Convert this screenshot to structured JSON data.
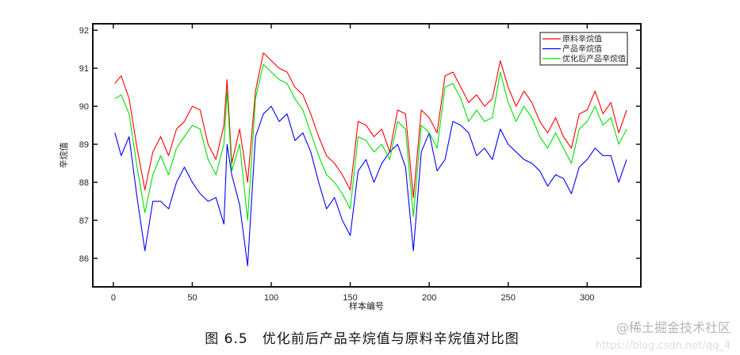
{
  "chart_data": {
    "type": "line",
    "title": "",
    "xlabel": "样本编号",
    "ylabel": "辛烷值",
    "xlim": [
      -13,
      334
    ],
    "ylim": [
      85.25,
      92.17
    ],
    "xticks": [
      0,
      50,
      100,
      150,
      200,
      250,
      300
    ],
    "yticks": [
      86,
      87,
      88,
      89,
      90,
      91,
      92
    ],
    "grid": false,
    "legend_position": "top-right",
    "x": [
      1,
      5,
      10,
      15,
      20,
      25,
      30,
      35,
      40,
      45,
      50,
      55,
      60,
      65,
      70,
      72,
      75,
      80,
      85,
      90,
      95,
      100,
      105,
      110,
      115,
      120,
      125,
      130,
      135,
      140,
      145,
      150,
      155,
      160,
      165,
      170,
      175,
      180,
      185,
      190,
      195,
      200,
      205,
      210,
      215,
      220,
      225,
      230,
      235,
      240,
      245,
      250,
      255,
      260,
      265,
      270,
      275,
      280,
      285,
      290,
      295,
      300,
      305,
      310,
      315,
      320,
      325
    ],
    "series": [
      {
        "name": "原料辛烷值",
        "color": "#ff0000",
        "values": [
          90.6,
          90.8,
          90.2,
          88.9,
          87.8,
          88.8,
          89.2,
          88.7,
          89.4,
          89.6,
          90.0,
          89.9,
          89.0,
          88.6,
          89.5,
          90.7,
          88.5,
          89.4,
          88.0,
          90.4,
          91.4,
          91.2,
          91.0,
          90.9,
          90.5,
          90.3,
          89.8,
          89.2,
          88.7,
          88.5,
          88.2,
          87.8,
          89.6,
          89.5,
          89.2,
          89.4,
          88.8,
          89.9,
          89.8,
          87.6,
          89.9,
          89.7,
          89.3,
          90.8,
          90.9,
          90.5,
          90.1,
          90.3,
          90.0,
          90.2,
          91.2,
          90.5,
          90.0,
          90.4,
          90.1,
          89.6,
          89.3,
          89.7,
          89.2,
          88.9,
          89.8,
          89.9,
          90.4,
          89.8,
          90.1,
          89.3,
          89.9
        ]
      },
      {
        "name": "产品辛烷值",
        "color": "#0000ff",
        "values": [
          89.3,
          88.7,
          89.2,
          87.6,
          86.2,
          87.5,
          87.5,
          87.3,
          88.0,
          88.4,
          88.0,
          87.7,
          87.5,
          87.6,
          86.9,
          89.0,
          88.2,
          87.4,
          85.8,
          89.2,
          89.8,
          90.0,
          89.6,
          89.8,
          89.1,
          89.3,
          88.8,
          88.0,
          87.3,
          87.6,
          87.0,
          86.6,
          88.3,
          88.6,
          88.0,
          88.5,
          88.8,
          89.0,
          88.4,
          86.2,
          88.8,
          89.3,
          88.3,
          88.6,
          89.6,
          89.5,
          89.3,
          88.7,
          88.9,
          88.6,
          89.4,
          89.0,
          88.8,
          88.6,
          88.5,
          88.3,
          87.9,
          88.2,
          88.1,
          87.7,
          88.4,
          88.6,
          88.9,
          88.7,
          88.7,
          88.0,
          88.6
        ]
      },
      {
        "name": "优化后产品辛烷值",
        "color": "#00e000",
        "values": [
          90.2,
          90.3,
          89.8,
          88.4,
          87.2,
          88.2,
          88.7,
          88.2,
          88.9,
          89.2,
          89.5,
          89.4,
          88.6,
          88.2,
          89.0,
          90.4,
          88.3,
          89.0,
          87.0,
          90.2,
          91.1,
          90.9,
          90.7,
          90.6,
          90.2,
          89.9,
          89.3,
          88.7,
          88.2,
          88.0,
          87.7,
          87.3,
          89.2,
          89.1,
          88.8,
          89.0,
          88.6,
          89.6,
          89.4,
          87.1,
          89.5,
          89.3,
          88.9,
          90.5,
          90.6,
          90.2,
          89.6,
          89.9,
          89.6,
          89.7,
          90.9,
          90.1,
          89.6,
          90.0,
          89.7,
          89.2,
          88.9,
          89.3,
          88.9,
          88.5,
          89.4,
          89.6,
          90.0,
          89.5,
          89.7,
          89.0,
          89.4
        ]
      }
    ]
  },
  "caption": "图 6.5　优化前后产品辛烷值与原料辛烷值对比图",
  "watermark": "@稀土掘金技术社区",
  "watermark_url": "https://blog.csdn.net/qq_4"
}
